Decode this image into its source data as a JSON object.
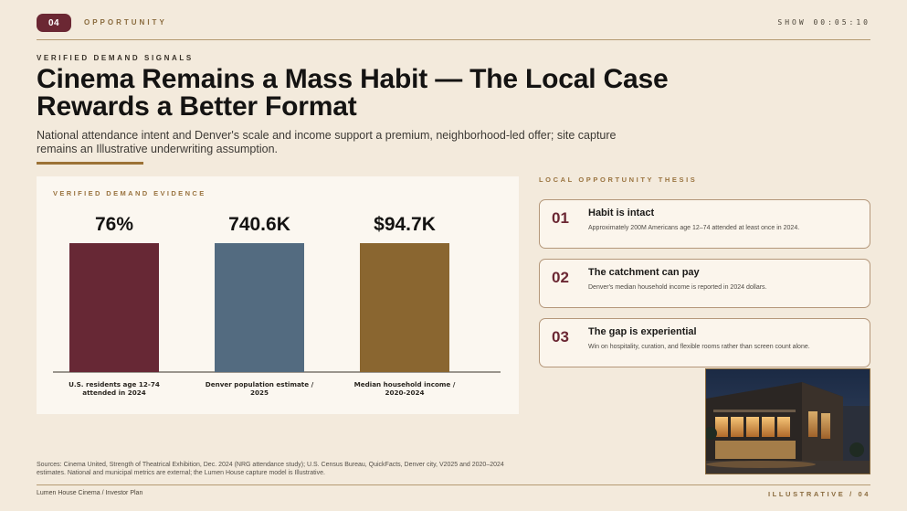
{
  "header": {
    "slide_number": "04",
    "section": "OPPORTUNITY",
    "timer": "SHOW 00:05:10"
  },
  "eyebrow": "VERIFIED DEMAND SIGNALS",
  "title": "Cinema Remains a Mass Habit — The Local Case Rewards a Better Format",
  "subtitle": "National attendance intent and Denver's scale and income support a premium, neighborhood-led offer; site capture remains an Illustrative underwriting assumption.",
  "chart_data": {
    "type": "bar",
    "title": "VERIFIED DEMAND EVIDENCE",
    "categories": [
      [
        "U.S. residents age 12-74",
        "attended in 2024"
      ],
      [
        "Denver population estimate /",
        "2025"
      ],
      [
        "Median household income /",
        "2020-2024"
      ]
    ],
    "value_labels": [
      "76%",
      "740.6K",
      "$94.7K"
    ],
    "relative_height": [
      1,
      1,
      1
    ],
    "colors": [
      "#672835",
      "#536b80",
      "#8a6630"
    ],
    "grid": false,
    "legend": "none"
  },
  "thesis": {
    "label": "LOCAL OPPORTUNITY THESIS",
    "items": [
      {
        "num": "01",
        "title": "Habit is intact",
        "body": "Approximately 200M Americans age 12–74 attended at least once in 2024."
      },
      {
        "num": "02",
        "title": "The catchment can pay",
        "body": "Denver's median household income is reported in 2024 dollars."
      },
      {
        "num": "03",
        "title": "The gap is experiential",
        "body": "Win on hospitality, curation, and flexible rooms rather than screen count alone."
      }
    ]
  },
  "sources": "Sources: Cinema United, Strength of Theatrical Exhibition, Dec. 2024 (NRG attendance study); U.S. Census Bureau, QuickFacts, Denver city, V2025 and 2020–2024 estimates. National and municipal metrics are external; the Lumen House capture model is Illustrative.",
  "footer": {
    "left": "Lumen House Cinema / Investor Plan",
    "right": "ILLUSTRATIVE / 04"
  }
}
